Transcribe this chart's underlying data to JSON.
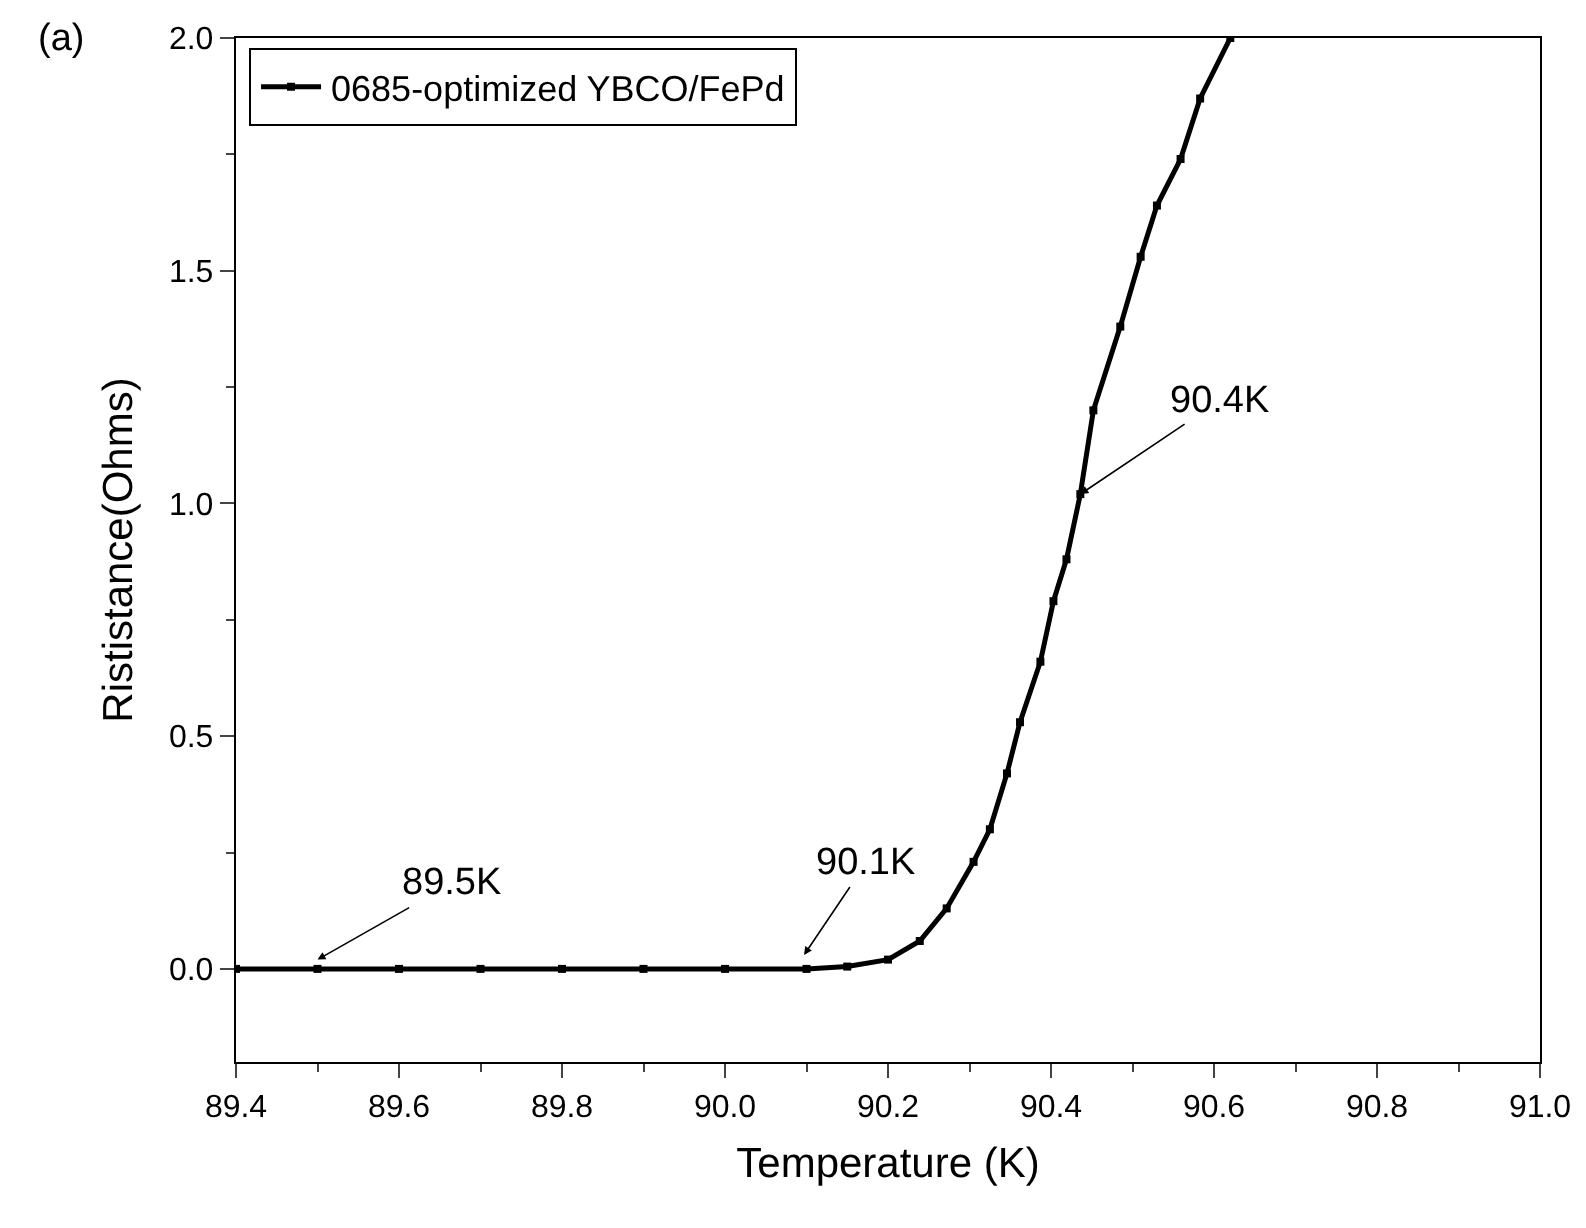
{
  "chart_data": {
    "type": "line",
    "xlabel": "Temperature (K)",
    "ylabel": "Rististance(Ohms)",
    "series": [
      {
        "name": "0685-optimized YBCO/FePd",
        "color": "#000000",
        "x": [
          89.4,
          89.5,
          89.6,
          89.7,
          89.8,
          89.9,
          90.0,
          90.1,
          90.15,
          90.2,
          90.239,
          90.272,
          90.305,
          90.325,
          90.346,
          90.362,
          90.387,
          90.403,
          90.419,
          90.436,
          90.452,
          90.485,
          90.51,
          90.53,
          90.559,
          90.583,
          90.62
        ],
        "values": [
          0,
          0,
          0,
          0,
          0,
          0,
          0,
          0,
          0.005,
          0.02,
          0.06,
          0.13,
          0.23,
          0.3,
          0.42,
          0.53,
          0.66,
          0.79,
          0.88,
          1.02,
          1.2,
          1.38,
          1.53,
          1.64,
          1.74,
          1.87,
          2.0
        ]
      }
    ],
    "xlim": [
      89.4,
      91.0
    ],
    "xticks": [
      89.4,
      89.6,
      89.8,
      {
        "value": 90.0,
        "label": "90.0"
      },
      90.2,
      90.4,
      90.6,
      90.8,
      {
        "value": 91.0,
        "label": "91.0"
      }
    ],
    "ylim": [
      -0.2,
      2.0
    ],
    "yticks": [
      {
        "value": 0,
        "label": "0.0"
      },
      0.5,
      {
        "value": 1,
        "label": "1.0"
      },
      1.5,
      {
        "value": 2,
        "label": "2.0"
      }
    ],
    "annotations": [
      "(a)",
      {
        "text": "89.5K",
        "x": 89.5,
        "y": 0.02
      },
      {
        "text": "90.1K",
        "x": 90.097,
        "y": 0.03
      },
      {
        "text": "90.4K",
        "x": 90.436,
        "y": 1.02
      }
    ],
    "grid": false,
    "legend": "top left",
    "marker": "square",
    "line_style": "solid"
  }
}
